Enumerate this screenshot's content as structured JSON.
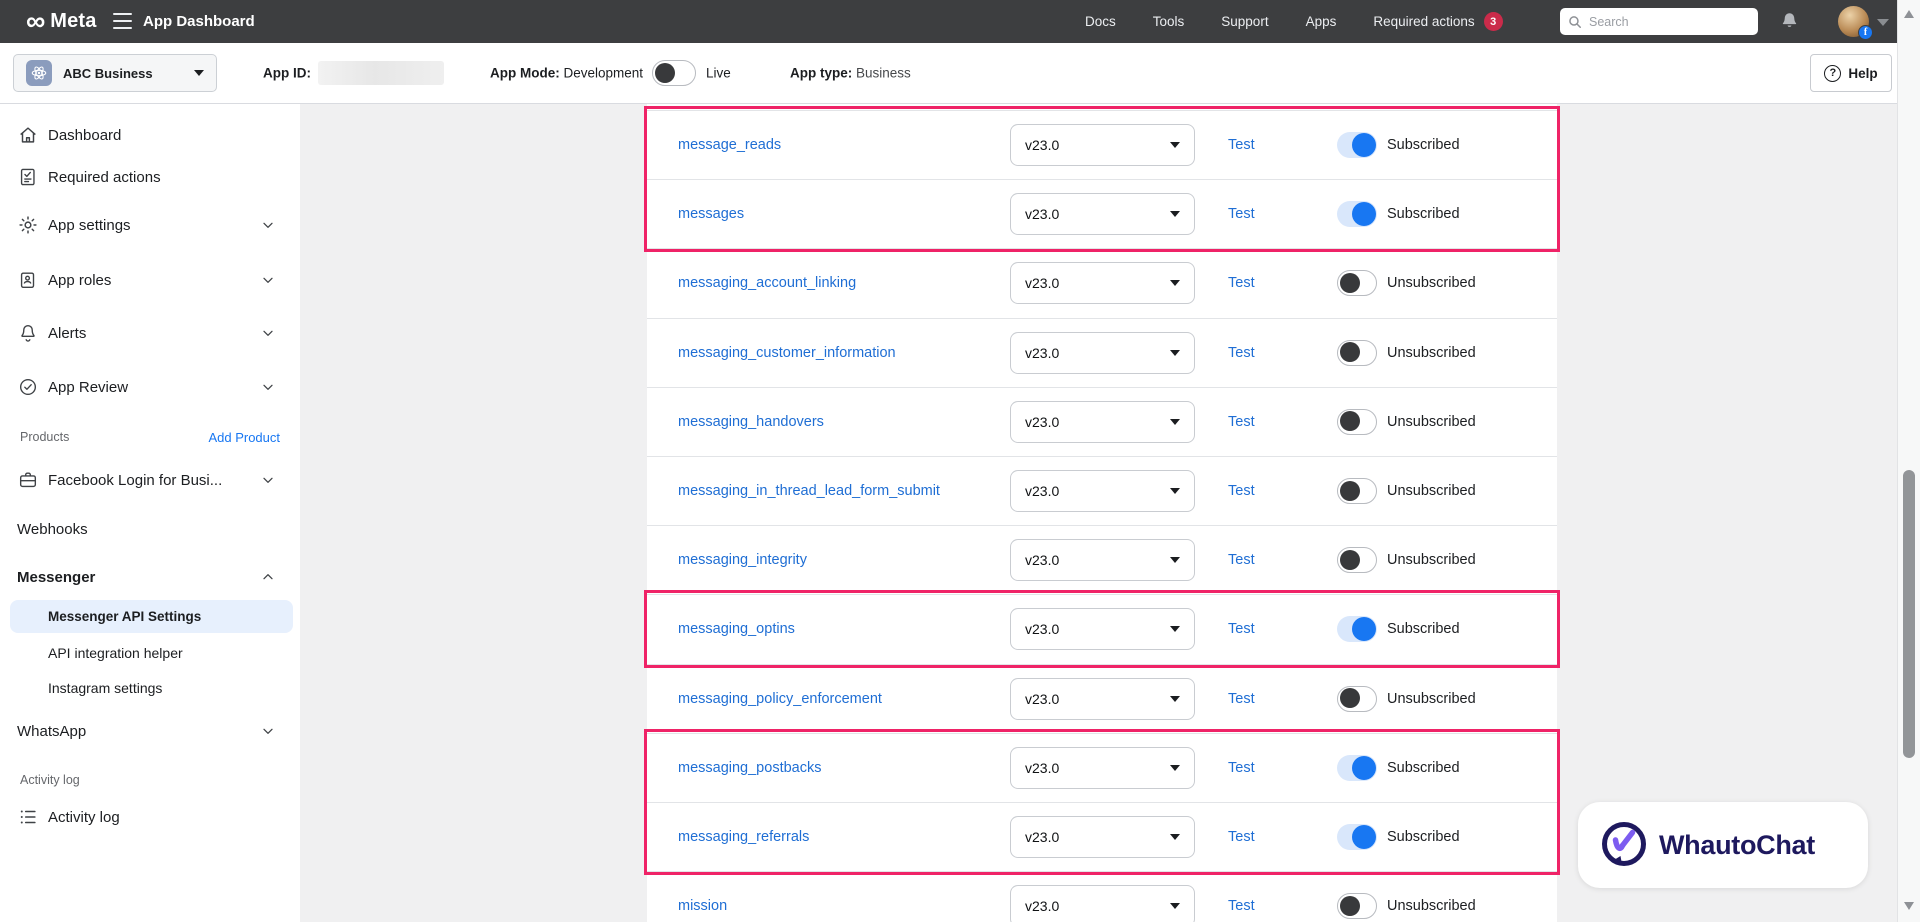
{
  "colors": {
    "navbar_bg": "#3d3e40",
    "link_blue": "#1f6ed4",
    "toggle_on": "#1877f2",
    "toggle_on_track": "#d9e7fb",
    "highlight_box": "#ef2367",
    "badge_red": "#cb2b4a",
    "selected_item_bg": "#e7f0fd",
    "page_bg": "#f0f0f1",
    "watermark_navy": "#1e195e",
    "watermark_purple": "#7c5cf0"
  },
  "navbar": {
    "infinity": "∞",
    "brand": "Meta",
    "title": "App Dashboard",
    "links": [
      "Docs",
      "Tools",
      "Support",
      "Apps",
      "Required actions"
    ],
    "required_actions_badge": "3",
    "search_placeholder": "Search"
  },
  "toolbar": {
    "app_name": "ABC Business",
    "app_id_label": "App ID:",
    "app_mode_label": "App Mode:",
    "app_mode_value": "Development",
    "live_label": "Live",
    "app_type_label": "App type:",
    "app_type_value": "Business",
    "help_label": "Help"
  },
  "sidebar": {
    "items": {
      "dashboard": "Dashboard",
      "required_actions": "Required actions",
      "app_settings": "App settings",
      "app_roles": "App roles",
      "alerts": "Alerts",
      "app_review": "App Review"
    },
    "products_label": "Products",
    "add_product_label": "Add Product",
    "facebook_login": "Facebook Login for Busi...",
    "webhooks": "Webhooks",
    "messenger": "Messenger",
    "messenger_api_settings": "Messenger API Settings",
    "api_integration_helper": "API integration helper",
    "instagram_settings": "Instagram settings",
    "whatsapp": "WhatsApp",
    "activity_section_label": "Activity log",
    "activity_item": "Activity log"
  },
  "table": {
    "subscribed_label": "Subscribed",
    "unsubscribed_label": "Unsubscribed",
    "rows": [
      {
        "name": "message_reads",
        "version": "v23.0",
        "action": "Test",
        "subscribed": true
      },
      {
        "name": "messages",
        "version": "v23.0",
        "action": "Test",
        "subscribed": true
      },
      {
        "name": "messaging_account_linking",
        "version": "v23.0",
        "action": "Test",
        "subscribed": false
      },
      {
        "name": "messaging_customer_information",
        "version": "v23.0",
        "action": "Test",
        "subscribed": false
      },
      {
        "name": "messaging_handovers",
        "version": "v23.0",
        "action": "Test",
        "subscribed": false
      },
      {
        "name": "messaging_in_thread_lead_form_submit",
        "version": "v23.0",
        "action": "Test",
        "subscribed": false
      },
      {
        "name": "messaging_integrity",
        "version": "v23.0",
        "action": "Test",
        "subscribed": false
      },
      {
        "name": "messaging_optins",
        "version": "v23.0",
        "action": "Test",
        "subscribed": true
      },
      {
        "name": "messaging_policy_enforcement",
        "version": "v23.0",
        "action": "Test",
        "subscribed": false
      },
      {
        "name": "messaging_postbacks",
        "version": "v23.0",
        "action": "Test",
        "subscribed": true
      },
      {
        "name": "messaging_referrals",
        "version": "v23.0",
        "action": "Test",
        "subscribed": true
      },
      {
        "name": "mission",
        "version": "v23.0",
        "action": "Test",
        "subscribed": false
      }
    ],
    "highlight_groups": [
      [
        0,
        1
      ],
      [
        7,
        7
      ],
      [
        9,
        10
      ]
    ]
  },
  "watermark": {
    "name": "WhautoChat"
  }
}
